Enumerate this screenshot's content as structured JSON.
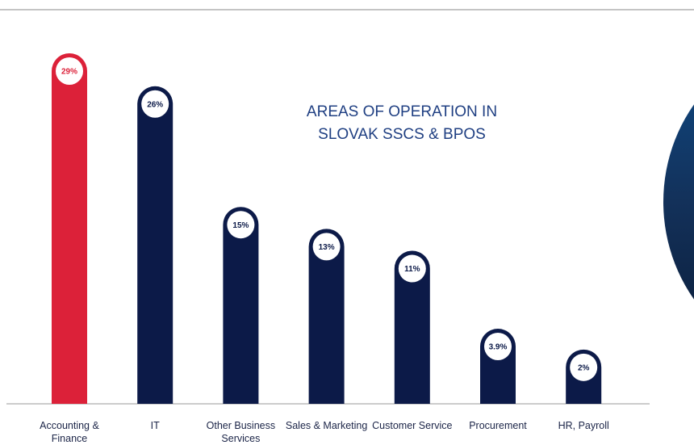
{
  "chart_data": {
    "type": "bar",
    "title": "AREAS OF OPERATION IN SLOVAK SSCS & BPOS",
    "categories": [
      "Accounting & Finance",
      "IT",
      "Other Business Services",
      "Sales & Marketing",
      "Customer Service",
      "Procurement",
      "HR, Payroll"
    ],
    "values": [
      29,
      26,
      15,
      13,
      11,
      3.9,
      2
    ],
    "value_labels": [
      "29%",
      "26%",
      "15%",
      "13%",
      "11%",
      "3.9%",
      "2%"
    ],
    "colors": [
      "#dc2139",
      "#0c1a48",
      "#0c1a48",
      "#0c1a48",
      "#0c1a48",
      "#0c1a48",
      "#0c1a48"
    ]
  }
}
